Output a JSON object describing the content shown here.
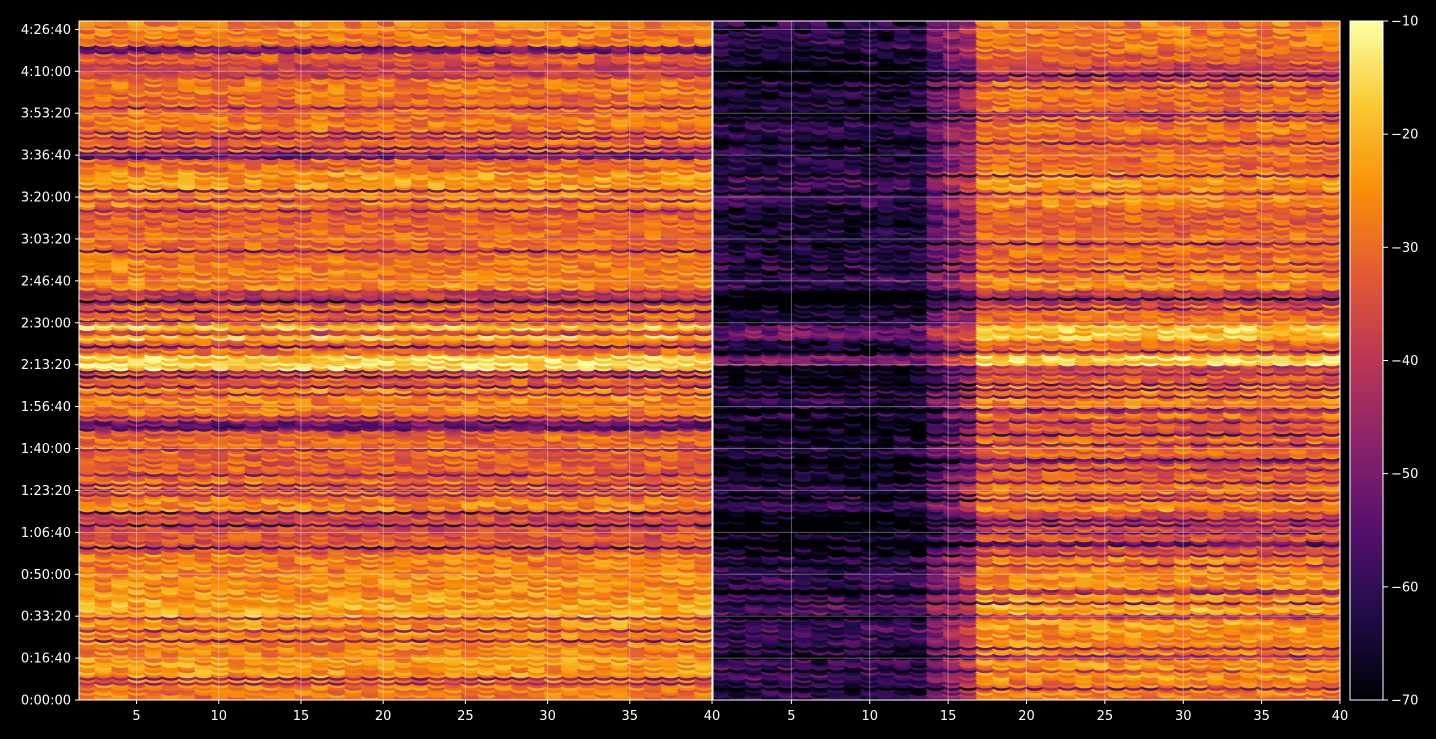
{
  "chart_data": {
    "type": "heatmap",
    "title": "",
    "xlabel": "",
    "ylabel": "",
    "grid": true,
    "panels": [
      {
        "name": "",
        "xlim": [
          1.5,
          40
        ],
        "x_ticks": [
          5,
          10,
          15,
          20,
          25,
          30,
          35,
          40
        ],
        "x_tick_labels": [
          "5",
          "10",
          "15",
          "20",
          "25",
          "30",
          "35",
          "40"
        ],
        "profile": "uniform"
      },
      {
        "name": "",
        "xlim": [
          0,
          40
        ],
        "x_ticks": [
          5,
          10,
          15,
          20,
          25,
          30,
          35,
          40
        ],
        "x_tick_labels": [
          "5",
          "10",
          "15",
          "20",
          "25",
          "30",
          "35",
          "40"
        ],
        "profile": "attenuated-low-x"
      }
    ],
    "y_axis": {
      "unit": "h:mm:ss",
      "ylim_seconds": [
        0,
        16200
      ],
      "ticks_seconds": [
        0,
        1000,
        2000,
        3000,
        4000,
        5000,
        6000,
        7000,
        8000,
        9000,
        10000,
        11000,
        12000,
        13000,
        14000,
        15000,
        16000
      ],
      "tick_labels": [
        "0:00:00",
        "0:16:40",
        "0:33:20",
        "0:50:00",
        "1:06:40",
        "1:23:20",
        "1:40:00",
        "1:56:40",
        "2:13:20",
        "2:30:00",
        "2:46:40",
        "3:03:20",
        "3:20:00",
        "3:36:40",
        "3:53:20",
        "4:10:00",
        "4:26:40"
      ]
    },
    "colorbar": {
      "colormap": "inferno",
      "range": [
        -70,
        -10
      ],
      "ticks": [
        -70,
        -60,
        -50,
        -40,
        -30,
        -20,
        -10
      ],
      "tick_labels": [
        "−70",
        "−60",
        "−50",
        "−40",
        "−30",
        "−20",
        "−10"
      ]
    },
    "row_band_intensity": [
      {
        "y_seconds": 300,
        "value": -28
      },
      {
        "y_seconds": 800,
        "value": -24
      },
      {
        "y_seconds": 1300,
        "value": -26
      },
      {
        "y_seconds": 1600,
        "value": -26
      },
      {
        "y_seconds": 1800,
        "value": -24
      },
      {
        "y_seconds": 2100,
        "value": -22
      },
      {
        "y_seconds": 2800,
        "value": -25
      },
      {
        "y_seconds": 3300,
        "value": -27
      },
      {
        "y_seconds": 3800,
        "value": -34
      },
      {
        "y_seconds": 4400,
        "value": -36
      },
      {
        "y_seconds": 4700,
        "value": -26
      },
      {
        "y_seconds": 4900,
        "value": -28
      },
      {
        "y_seconds": 5600,
        "value": -32
      },
      {
        "y_seconds": 6100,
        "value": -30
      },
      {
        "y_seconds": 6600,
        "value": -34
      },
      {
        "y_seconds": 7000,
        "value": -28
      },
      {
        "y_seconds": 7300,
        "value": -26
      },
      {
        "y_seconds": 7800,
        "value": -32
      },
      {
        "y_seconds": 8000,
        "value": -16
      },
      {
        "y_seconds": 8600,
        "value": -30
      },
      {
        "y_seconds": 8700,
        "value": -18
      },
      {
        "y_seconds": 9300,
        "value": -30
      },
      {
        "y_seconds": 9700,
        "value": -40
      },
      {
        "y_seconds": 10000,
        "value": -26
      },
      {
        "y_seconds": 10300,
        "value": -27
      },
      {
        "y_seconds": 10800,
        "value": -30
      },
      {
        "y_seconds": 11100,
        "value": -30
      },
      {
        "y_seconds": 11500,
        "value": -32
      },
      {
        "y_seconds": 12100,
        "value": -26
      },
      {
        "y_seconds": 12400,
        "value": -24
      },
      {
        "y_seconds": 12900,
        "value": -30
      },
      {
        "y_seconds": 13300,
        "value": -30
      },
      {
        "y_seconds": 13800,
        "value": -28
      },
      {
        "y_seconds": 14300,
        "value": -30
      },
      {
        "y_seconds": 14700,
        "value": -28
      },
      {
        "y_seconds": 15100,
        "value": -38
      },
      {
        "y_seconds": 15400,
        "value": -32
      },
      {
        "y_seconds": 15700,
        "value": -28
      },
      {
        "y_seconds": 16000,
        "value": -28
      }
    ]
  }
}
